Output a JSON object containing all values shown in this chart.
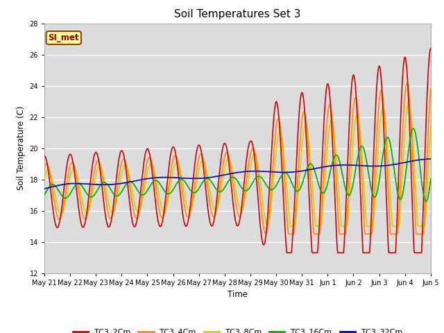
{
  "title": "Soil Temperatures Set 3",
  "xlabel": "Time",
  "ylabel": "Soil Temperature (C)",
  "ylim": [
    12,
    28
  ],
  "yticks": [
    12,
    14,
    16,
    18,
    20,
    22,
    24,
    26,
    28
  ],
  "bg_color": "#DCDCDC",
  "annotation_text": "SI_met",
  "annotation_bg": "#FFFF99",
  "annotation_border": "#8B4513",
  "legend_entries": [
    "TC3_2Cm",
    "TC3_4Cm",
    "TC3_8Cm",
    "TC3_16Cm",
    "TC3_32Cm"
  ],
  "colors": [
    "#CC0000",
    "#FF8C00",
    "#DDCC00",
    "#00AA00",
    "#0000BB"
  ],
  "line_width": 1.2,
  "xtick_labels": [
    "May 21",
    "May 22",
    "May 23",
    "May 24",
    "May 25",
    "May 26",
    "May 27",
    "May 28",
    "May 29",
    "May 30",
    "May 31",
    "Jun 1",
    "Jun 2",
    "Jun 3",
    "Jun 4",
    "Jun 5"
  ]
}
